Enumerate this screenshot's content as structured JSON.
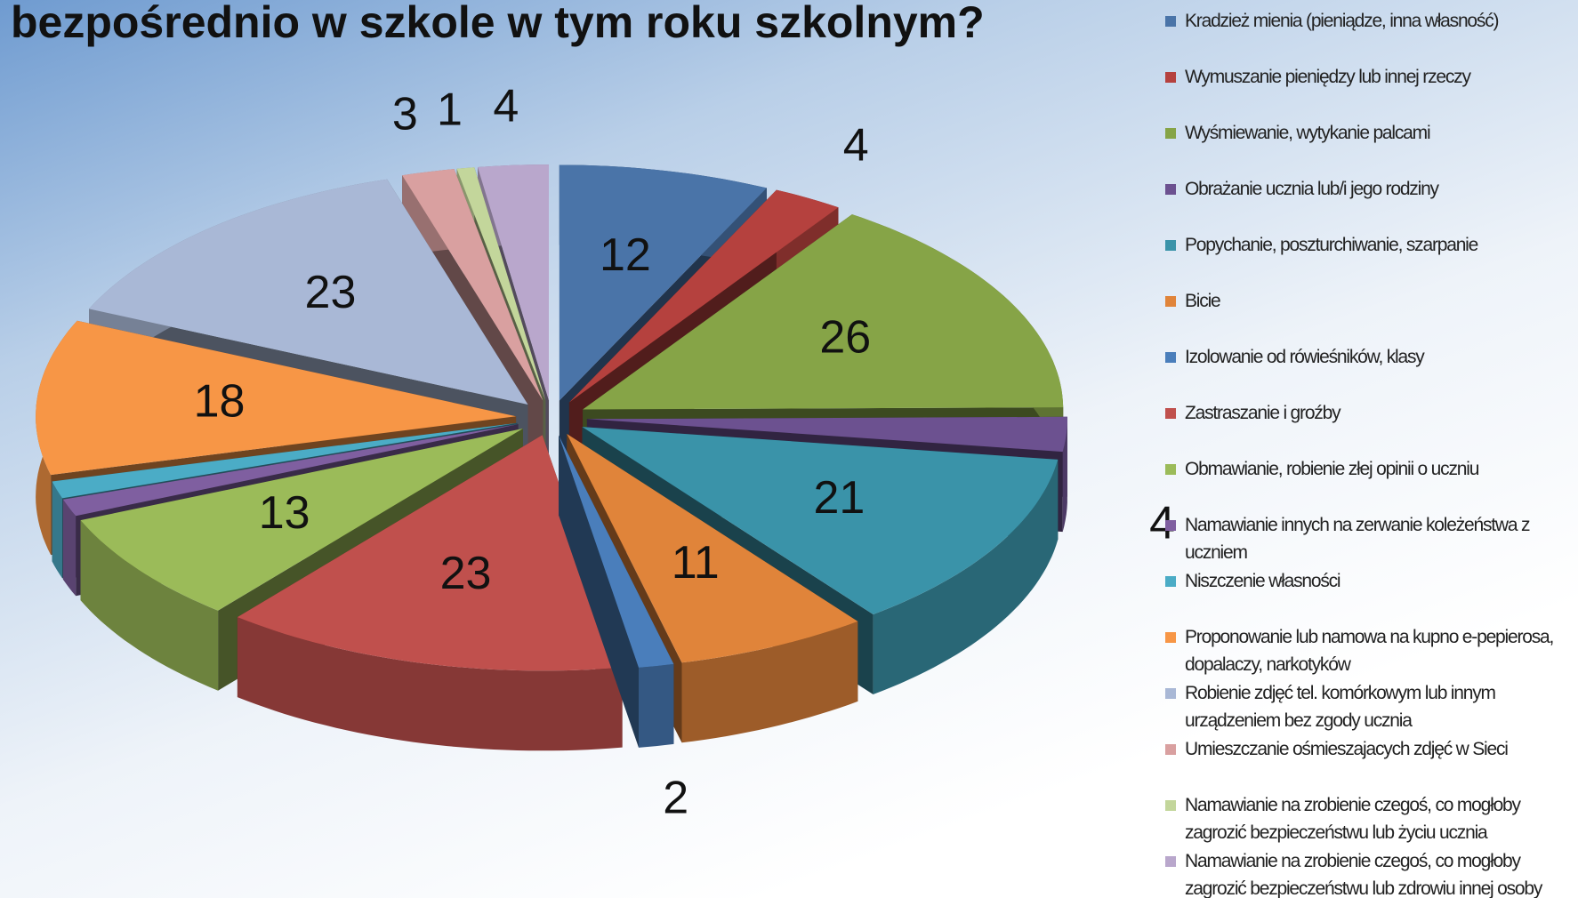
{
  "chart_data": {
    "type": "pie3d",
    "title": "bezpośrednio  w szkole  w tym roku szkolnym?",
    "categories": [
      "Kradzież mienia (pieniądze, inna własność)",
      "Wymuszanie pieniędzy lub innej rzeczy",
      "Wyśmiewanie, wytykanie palcami",
      "Obrażanie ucznia lub/i jego rodziny",
      "Popychanie, poszturchiwanie, szarpanie",
      "Bicie",
      "Izolowanie od rówieśników, klasy",
      "Zastraszanie i groźby",
      "Obmawianie, robienie złej opinii o uczniu",
      "Namawianie innych na zerwanie koleżeństwa z uczniem",
      "Niszczenie własności",
      "Proponowanie lub namowa na kupno e-pepierosa, dopalaczy, narkotyków",
      "Robienie zdjęć tel. komórkowym lub innym urządzeniem bez zgody ucznia",
      "Umieszczanie ośmieszajacych zdjęć w Sieci",
      "Namawianie na zrobienie czegoś, co mogłoby zagrozić bezpieczeństwu lub życiu ucznia",
      "Namawianie na zrobienie czegoś, co mogłoby zagrozić bezpieczeństwu lub zdrowiu innej osoby"
    ],
    "values": [
      12,
      4,
      26,
      4,
      21,
      11,
      2,
      23,
      13,
      2,
      2,
      18,
      23,
      3,
      1,
      4
    ],
    "colors": [
      "#4a74a8",
      "#b5413e",
      "#86a447",
      "#6c5190",
      "#3a93a9",
      "#e0843a",
      "#4a7ebb",
      "#c0504d",
      "#9bbb59",
      "#7f5fa0",
      "#4bacc6",
      "#f79646",
      "#a9b8d6",
      "#d9a0a0",
      "#c3d69b",
      "#b9a7cc"
    ],
    "legend": "right"
  }
}
